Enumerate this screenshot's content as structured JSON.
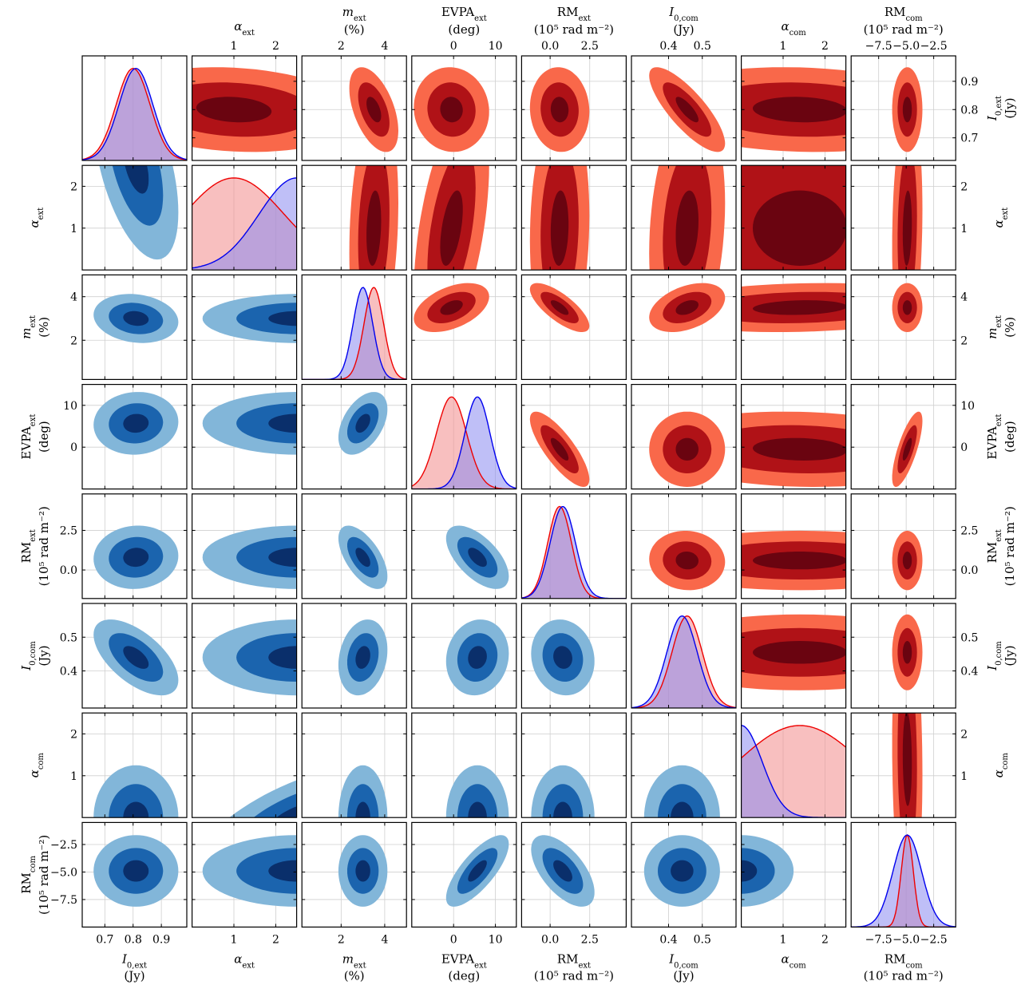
{
  "chart_data": {
    "type": "corner",
    "params": [
      {
        "key": "I0ext",
        "sym": "I",
        "sub": "0,ext",
        "unit": "(Jy)",
        "range": [
          0.62,
          0.99
        ],
        "ticks": [
          0.7,
          0.8,
          0.9
        ],
        "tick_labels": [
          "0.7",
          "0.8",
          "0.9"
        ],
        "mean_lower": 0.81,
        "sd_lower": 0.06,
        "mean_upper": 0.8,
        "sd_upper": 0.06
      },
      {
        "key": "aext",
        "sym": "α",
        "sub": "ext",
        "unit": "",
        "range": [
          0.0,
          2.5
        ],
        "ticks": [
          1,
          2
        ],
        "tick_labels": [
          "1",
          "2"
        ],
        "mean_lower": 2.5,
        "sd_lower": 0.9,
        "mean_upper": 1.0,
        "sd_upper": 1.2
      },
      {
        "key": "mext",
        "sym": "m",
        "sub": "ext",
        "unit": "(%)",
        "range": [
          0.2,
          5.0
        ],
        "ticks": [
          2,
          4
        ],
        "tick_labels": [
          "2",
          "4"
        ],
        "mean_lower": 3.0,
        "sd_lower": 0.45,
        "mean_upper": 3.5,
        "sd_upper": 0.45
      },
      {
        "key": "evpa",
        "sym": "EVPA",
        "sub": "ext",
        "unit": "(deg)",
        "range": [
          -10.0,
          15.0
        ],
        "ticks": [
          0,
          10
        ],
        "tick_labels": [
          "0",
          "10"
        ],
        "mean_lower": 5.7,
        "sd_lower": 3.0,
        "mean_upper": -0.5,
        "sd_upper": 3.6
      },
      {
        "key": "rmext",
        "sym": "RM",
        "sub": "ext",
        "unit": "(10⁵ rad m⁻²)",
        "range": [
          -1.8,
          4.8
        ],
        "ticks": [
          0.0,
          2.5
        ],
        "tick_labels": [
          "0.0",
          "2.5"
        ],
        "mean_lower": 0.8,
        "sd_lower": 0.8,
        "mean_upper": 0.6,
        "sd_upper": 0.75
      },
      {
        "key": "I0com",
        "sym": "I",
        "sub": "0,com",
        "unit": "(Jy)",
        "range": [
          0.29,
          0.6
        ],
        "ticks": [
          0.4,
          0.5
        ],
        "tick_labels": [
          "0.4",
          "0.5"
        ],
        "mean_lower": 0.44,
        "sd_lower": 0.045,
        "mean_upper": 0.455,
        "sd_upper": 0.045
      },
      {
        "key": "acom",
        "sym": "α",
        "sub": "com",
        "unit": "",
        "range": [
          0.0,
          2.5
        ],
        "ticks": [
          1,
          2
        ],
        "tick_labels": [
          "1",
          "2"
        ],
        "mean_lower": 0.0,
        "sd_lower": 0.5,
        "mean_upper": 1.4,
        "sd_upper": 1.5
      },
      {
        "key": "rmcom",
        "sym": "RM",
        "sub": "com",
        "unit": "(10⁵ rad m⁻²)",
        "range": [
          -10.0,
          -0.5
        ],
        "ticks": [
          -7.5,
          -5.0,
          -2.5
        ],
        "tick_labels": [
          "−7.5",
          "−5.0",
          "−2.5"
        ],
        "mean_lower": -4.9,
        "sd_lower": 1.3,
        "mean_upper": -4.9,
        "sd_upper": 0.55
      }
    ],
    "correlations": {
      "lower": [
        [
          0,
          1,
          -0.5
        ],
        [
          0,
          2,
          -0.15
        ],
        [
          0,
          3,
          0.05
        ],
        [
          0,
          4,
          0.05
        ],
        [
          0,
          5,
          -0.6
        ],
        [
          0,
          6,
          0.0
        ],
        [
          0,
          7,
          0.0
        ],
        [
          1,
          2,
          0.0
        ],
        [
          1,
          3,
          0.0
        ],
        [
          1,
          4,
          0.0
        ],
        [
          1,
          5,
          0.0
        ],
        [
          1,
          6,
          0.7
        ],
        [
          1,
          7,
          0.0
        ],
        [
          2,
          3,
          0.45
        ],
        [
          2,
          4,
          -0.6
        ],
        [
          2,
          5,
          0.2
        ],
        [
          2,
          6,
          0.0
        ],
        [
          2,
          7,
          0.0
        ],
        [
          3,
          4,
          -0.6
        ],
        [
          3,
          5,
          0.1
        ],
        [
          3,
          6,
          0.0
        ],
        [
          3,
          7,
          0.75
        ],
        [
          4,
          5,
          -0.1
        ],
        [
          4,
          6,
          0.0
        ],
        [
          4,
          7,
          -0.6
        ],
        [
          5,
          6,
          0.0
        ],
        [
          5,
          7,
          0.0
        ],
        [
          6,
          7,
          0.0
        ]
      ],
      "upper": [
        [
          0,
          1,
          -0.15
        ],
        [
          0,
          2,
          -0.5
        ],
        [
          0,
          3,
          -0.05
        ],
        [
          0,
          4,
          -0.05
        ],
        [
          0,
          5,
          -0.8
        ],
        [
          0,
          6,
          -0.1
        ],
        [
          0,
          7,
          0.0
        ],
        [
          1,
          2,
          0.2
        ],
        [
          1,
          3,
          0.5
        ],
        [
          1,
          4,
          0.1
        ],
        [
          1,
          5,
          0.2
        ],
        [
          1,
          6,
          0.0
        ],
        [
          1,
          7,
          0.15
        ],
        [
          2,
          3,
          0.45
        ],
        [
          2,
          4,
          -0.75
        ],
        [
          2,
          5,
          0.4
        ],
        [
          2,
          6,
          0.15
        ],
        [
          2,
          7,
          0.0
        ],
        [
          3,
          4,
          -0.8
        ],
        [
          3,
          5,
          0.0
        ],
        [
          3,
          6,
          -0.1
        ],
        [
          3,
          7,
          0.75
        ],
        [
          4,
          5,
          -0.05
        ],
        [
          4,
          6,
          0.0
        ],
        [
          4,
          7,
          0.0
        ],
        [
          5,
          6,
          0.0
        ],
        [
          5,
          7,
          0.0
        ],
        [
          6,
          7,
          -0.1
        ]
      ]
    },
    "legend": "none",
    "grid": true,
    "colors": {
      "lower_fills": [
        "#82b6d9",
        "#1b64ae",
        "#0a2f6b"
      ],
      "upper_fills": [
        "#f9684a",
        "#b01217",
        "#6a0410"
      ],
      "line_lower": "#0000ee",
      "line_upper": "#ee0000",
      "fill_lower": "#8a8af0",
      "fill_upper": "#f49494"
    }
  }
}
